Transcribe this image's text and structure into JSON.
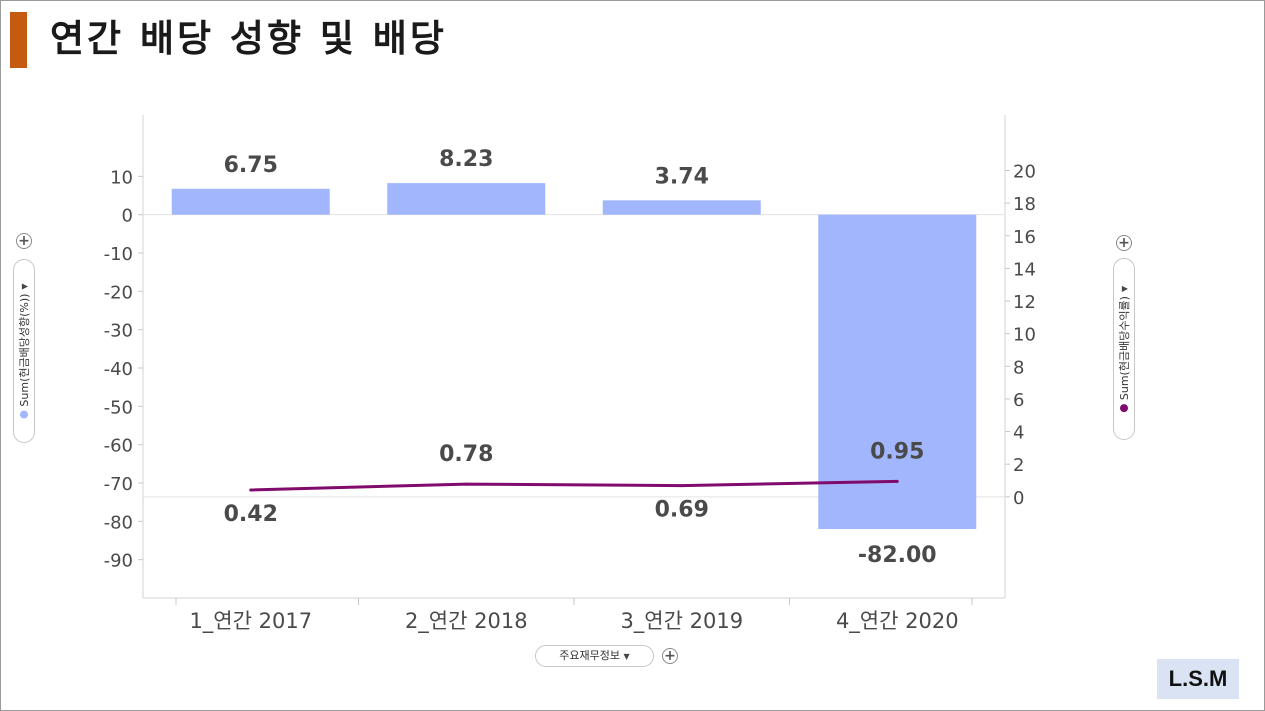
{
  "page": {
    "title": "연간 배당 성향 및 배당"
  },
  "chart_data": {
    "type": "bar+line",
    "categories": [
      "1_연간 2017",
      "2_연간 2018",
      "3_연간 2019",
      "4_연간 2020"
    ],
    "series": [
      {
        "name": "Sum(현금배당성향(%))",
        "type": "bar",
        "axis": "left",
        "values": [
          6.75,
          8.23,
          3.74,
          -82.0
        ],
        "labels": [
          "6.75",
          "8.23",
          "3.74",
          "-82.00"
        ],
        "color": "#a2b6fd"
      },
      {
        "name": "Sum(현금배당수익률)",
        "type": "line",
        "axis": "right",
        "values": [
          0.42,
          0.78,
          0.69,
          0.95
        ],
        "labels": [
          "0.42",
          "0.78",
          "0.69",
          "0.95"
        ],
        "color": "#800b6d"
      }
    ],
    "y_left": {
      "ticks": [
        10,
        0,
        -10,
        -20,
        -30,
        -40,
        -50,
        -60,
        -70,
        -80,
        -90
      ],
      "tick_labels": [
        "10",
        "0",
        "-10",
        "-20",
        "-30",
        "-40",
        "-50",
        "-60",
        "-70",
        "-80",
        "-90"
      ],
      "range": [
        -100,
        26
      ]
    },
    "y_right": {
      "ticks": [
        20,
        18,
        16,
        14,
        12,
        10,
        8,
        6,
        4,
        2,
        0
      ],
      "tick_labels": [
        "20",
        "18",
        "16",
        "14",
        "12",
        "10",
        "8",
        "6",
        "4",
        "2",
        "0"
      ],
      "range": [
        -6.2,
        23.4
      ]
    },
    "grid": false,
    "x_axis_control": "주요재무정보",
    "left_axis_control": "Sum(현금배당성향(%))",
    "right_axis_control": "Sum(현금배당수익률)"
  },
  "badge": {
    "text": "L.S.M"
  }
}
